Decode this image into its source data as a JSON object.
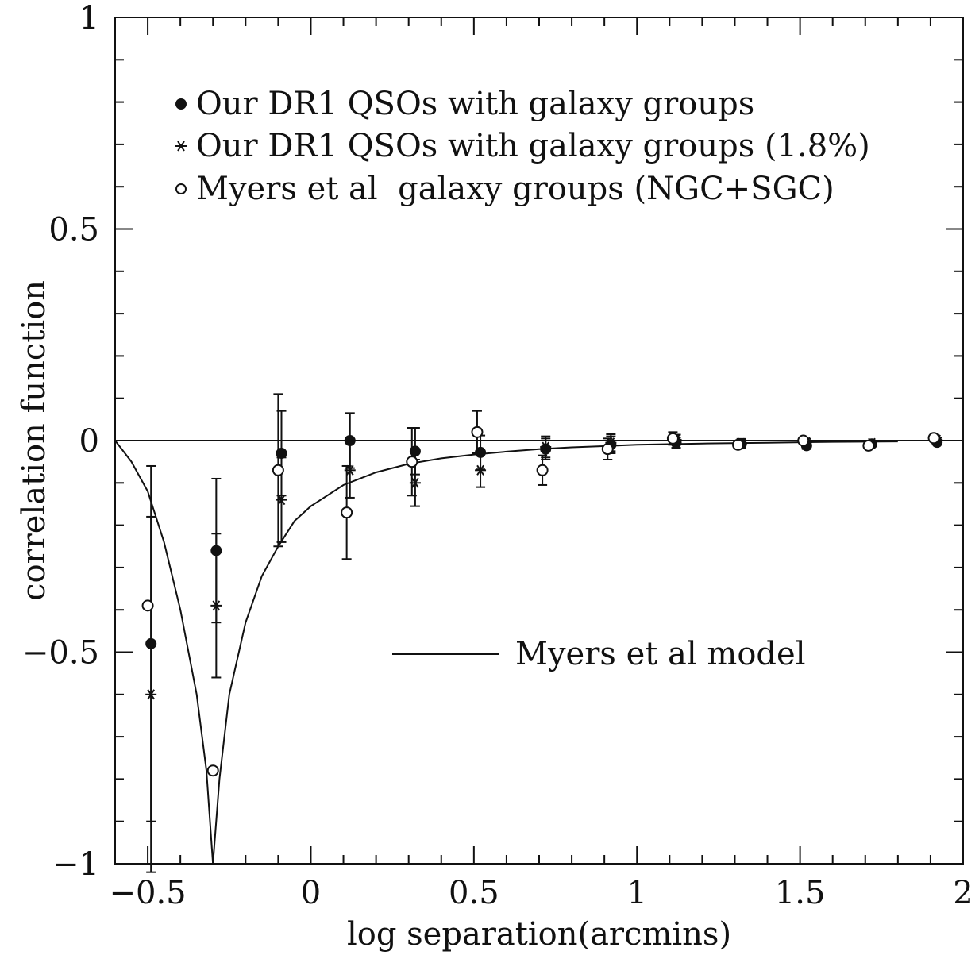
{
  "chart_data": {
    "type": "scatter",
    "xlabel": "log separation(arcmins)",
    "ylabel": "correlation function",
    "xlim": [
      -0.6,
      2.0
    ],
    "ylim": [
      -1.0,
      1.0
    ],
    "x_ticks": [
      -0.5,
      0,
      0.5,
      1,
      1.5,
      2
    ],
    "x_tick_labels": [
      "−0.5",
      "0",
      "0.5",
      "1",
      "1.5",
      "2"
    ],
    "y_ticks": [
      -1,
      -0.5,
      0,
      0.5,
      1
    ],
    "y_tick_labels": [
      "−1",
      "−0.5",
      "0",
      "0.5",
      "1"
    ],
    "grid": false,
    "zero_line": true,
    "legend_placement": "top-left",
    "series": [
      {
        "name": "Our DR1 QSOs with galaxy groups",
        "marker": "filled-circle",
        "points": [
          {
            "x": -0.49,
            "y": -0.48,
            "err": 0.42
          },
          {
            "x": -0.29,
            "y": -0.26,
            "err": 0.17
          },
          {
            "x": -0.09,
            "y": -0.03,
            "err": 0.1
          },
          {
            "x": 0.12,
            "y": 0.0,
            "err": 0.065
          },
          {
            "x": 0.32,
            "y": -0.025,
            "err": 0.055
          },
          {
            "x": 0.52,
            "y": -0.028,
            "err": 0.04
          },
          {
            "x": 0.72,
            "y": -0.02,
            "err": 0.025
          },
          {
            "x": 0.92,
            "y": -0.01,
            "err": 0.02
          },
          {
            "x": 1.12,
            "y": -0.005,
            "err": 0.012
          },
          {
            "x": 1.32,
            "y": -0.008,
            "err": 0.01
          },
          {
            "x": 1.52,
            "y": -0.012,
            "err": 0.008
          },
          {
            "x": 1.72,
            "y": -0.008,
            "err": 0.006
          },
          {
            "x": 1.92,
            "y": -0.004,
            "err": 0.005
          }
        ]
      },
      {
        "name": "Our DR1 QSOs with galaxy groups (1.8%)",
        "marker": "asterisk",
        "points": [
          {
            "x": -0.49,
            "y": -0.6,
            "err": 0.42
          },
          {
            "x": -0.29,
            "y": -0.39,
            "err": 0.17
          },
          {
            "x": -0.09,
            "y": -0.14,
            "err": 0.1
          },
          {
            "x": 0.12,
            "y": -0.07,
            "err": 0.065
          },
          {
            "x": 0.32,
            "y": -0.1,
            "err": 0.055
          },
          {
            "x": 0.52,
            "y": -0.07,
            "err": 0.04
          },
          {
            "x": 0.72,
            "y": -0.015,
            "err": 0.025
          },
          {
            "x": 0.92,
            "y": -0.005,
            "err": 0.02
          },
          {
            "x": 1.12,
            "y": 0.002,
            "err": 0.012
          },
          {
            "x": 1.32,
            "y": -0.006,
            "err": 0.01
          },
          {
            "x": 1.52,
            "y": -0.004,
            "err": 0.008
          },
          {
            "x": 1.72,
            "y": -0.006,
            "err": 0.006
          },
          {
            "x": 1.92,
            "y": 0.002,
            "err": 0.005
          }
        ]
      },
      {
        "name": "Myers et al  galaxy groups (NGC+SGC)",
        "marker": "open-circle",
        "points": [
          {
            "x": -0.5,
            "y": -0.39,
            "err": 0.0
          },
          {
            "x": -0.3,
            "y": -0.78,
            "err": 0.0
          },
          {
            "x": -0.1,
            "y": -0.07,
            "err": 0.18
          },
          {
            "x": 0.11,
            "y": -0.17,
            "err": 0.11
          },
          {
            "x": 0.31,
            "y": -0.05,
            "err": 0.08
          },
          {
            "x": 0.51,
            "y": 0.02,
            "err": 0.05
          },
          {
            "x": 0.71,
            "y": -0.07,
            "err": 0.035
          },
          {
            "x": 0.91,
            "y": -0.02,
            "err": 0.025
          },
          {
            "x": 1.11,
            "y": 0.005,
            "err": 0.015
          },
          {
            "x": 1.31,
            "y": -0.01,
            "err": 0.008
          },
          {
            "x": 1.51,
            "y": 0.0,
            "err": 0.006
          },
          {
            "x": 1.71,
            "y": -0.012,
            "err": 0.005
          },
          {
            "x": 1.91,
            "y": 0.006,
            "err": 0.004
          }
        ]
      },
      {
        "name": "Myers et al model",
        "type": "line",
        "x": [
          -0.6,
          -0.55,
          -0.5,
          -0.45,
          -0.4,
          -0.35,
          -0.32,
          -0.3,
          -0.28,
          -0.25,
          -0.2,
          -0.15,
          -0.1,
          -0.05,
          0.0,
          0.1,
          0.2,
          0.3,
          0.4,
          0.5,
          0.6,
          0.7,
          0.8,
          1.0,
          1.2,
          1.4,
          1.6,
          1.8
        ],
        "y": [
          0.0,
          -0.05,
          -0.12,
          -0.24,
          -0.4,
          -0.6,
          -0.78,
          -1.0,
          -0.8,
          -0.6,
          -0.43,
          -0.32,
          -0.25,
          -0.19,
          -0.155,
          -0.105,
          -0.075,
          -0.055,
          -0.042,
          -0.033,
          -0.026,
          -0.02,
          -0.016,
          -0.01,
          -0.007,
          -0.005,
          -0.003,
          -0.002
        ]
      }
    ]
  }
}
